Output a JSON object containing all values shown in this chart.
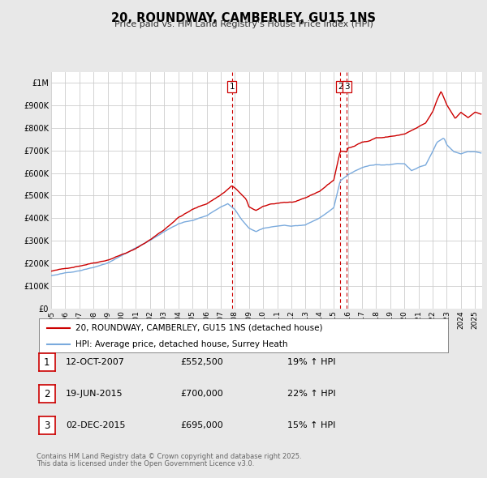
{
  "title": "20, ROUNDWAY, CAMBERLEY, GU15 1NS",
  "subtitle": "Price paid vs. HM Land Registry's House Price Index (HPI)",
  "legend_line1": "20, ROUNDWAY, CAMBERLEY, GU15 1NS (detached house)",
  "legend_line2": "HPI: Average price, detached house, Surrey Heath",
  "footnote1": "Contains HM Land Registry data © Crown copyright and database right 2025.",
  "footnote2": "This data is licensed under the Open Government Licence v3.0.",
  "transactions": [
    {
      "num": 1,
      "date": "12-OCT-2007",
      "price": "£552,500",
      "change": "19% ↑ HPI"
    },
    {
      "num": 2,
      "date": "19-JUN-2015",
      "price": "£700,000",
      "change": "22% ↑ HPI"
    },
    {
      "num": 3,
      "date": "02-DEC-2015",
      "price": "£695,000",
      "change": "15% ↑ HPI"
    }
  ],
  "vline_years": [
    2007.79,
    2015.46,
    2015.92
  ],
  "vline_color": "#cc0000",
  "plot_color_red": "#cc0000",
  "plot_color_blue": "#7aaadd",
  "bg_color": "#e8e8e8",
  "plot_bg_color": "#ffffff",
  "grid_color": "#cccccc",
  "ylim": [
    0,
    1050000
  ],
  "yticks": [
    0,
    100000,
    200000,
    300000,
    400000,
    500000,
    600000,
    700000,
    800000,
    900000,
    1000000
  ],
  "ytick_labels": [
    "£0",
    "£100K",
    "£200K",
    "£300K",
    "£400K",
    "£500K",
    "£600K",
    "£700K",
    "£800K",
    "£900K",
    "£1M"
  ],
  "xlim_start": 1995.0,
  "xlim_end": 2025.5,
  "xtick_years": [
    1995,
    1996,
    1997,
    1998,
    1999,
    2000,
    2001,
    2002,
    2003,
    2004,
    2005,
    2006,
    2007,
    2008,
    2009,
    2010,
    2011,
    2012,
    2013,
    2014,
    2015,
    2016,
    2017,
    2018,
    2019,
    2020,
    2021,
    2022,
    2023,
    2024,
    2025
  ]
}
